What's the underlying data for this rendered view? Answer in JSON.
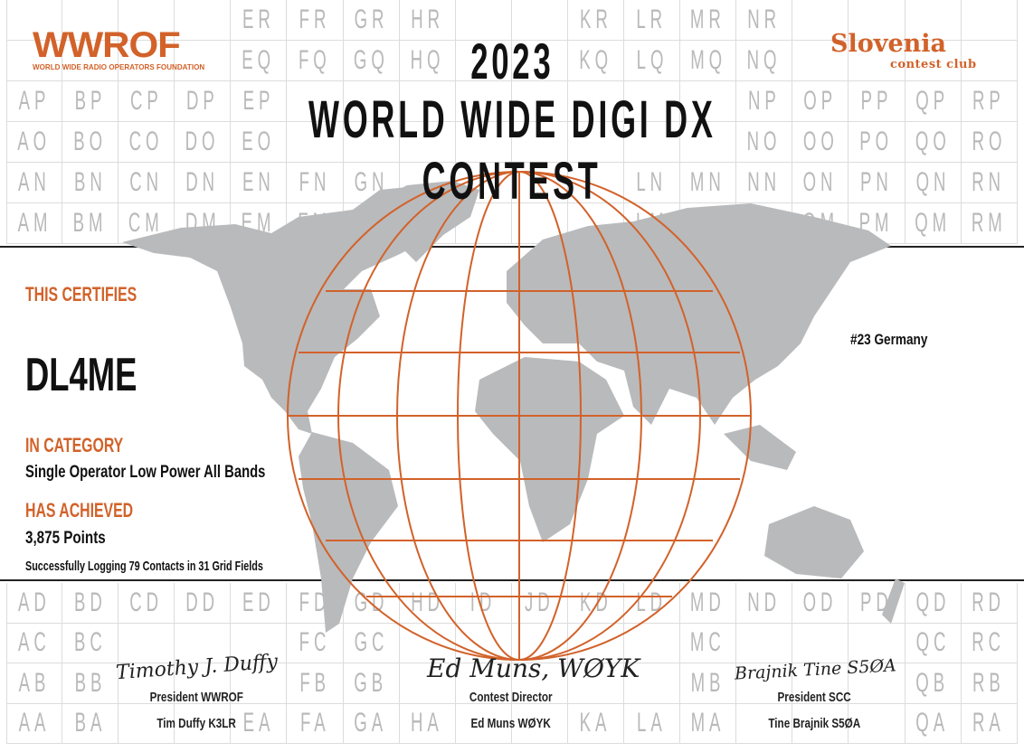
{
  "grid": {
    "columns": [
      "A",
      "B",
      "C",
      "D",
      "E",
      "F",
      "G",
      "H",
      "I",
      "J",
      "K",
      "L",
      "M",
      "N",
      "O",
      "P",
      "Q",
      "R"
    ],
    "top_rows": [
      "R",
      "Q",
      "P",
      "O",
      "N",
      "M"
    ],
    "bottom_rows": [
      "D",
      "C",
      "B",
      "A"
    ]
  },
  "logos": {
    "left": {
      "name": "WWROF",
      "tagline": "WORLD WIDE RADIO OPERATORS FOUNDATION"
    },
    "right": {
      "name": "Slovenia",
      "tagline": "contest club"
    }
  },
  "title": {
    "year": "2023",
    "line1": "WORLD WIDE DIGI DX",
    "line2": "CONTEST"
  },
  "certificate": {
    "certifies_label": "THIS CERTIFIES",
    "callsign": "DL4ME",
    "category_label": "IN CATEGORY",
    "category": "Single Operator Low Power  All Bands",
    "achieved_label": "HAS ACHIEVED",
    "points": "3,875 Points",
    "summary": "Successfully Logging 79 Contacts in 31 Grid Fields",
    "rank": "#23 Germany"
  },
  "signatures": [
    {
      "script": "Timothy J. Duffy",
      "title": "President WWROF",
      "name": "Tim Duffy K3LR"
    },
    {
      "script": "Ed Muns, WØYK",
      "title": "Contest Director",
      "name": "Ed Muns WØYK"
    },
    {
      "script": "Brajnik Tine S5ØA",
      "title": "President SCC",
      "name": "Tine Brajnik S5ØA"
    }
  ],
  "colors": {
    "accent": "#d2622a",
    "land": "#b9babc",
    "grid_text": "#b9b9b9"
  }
}
